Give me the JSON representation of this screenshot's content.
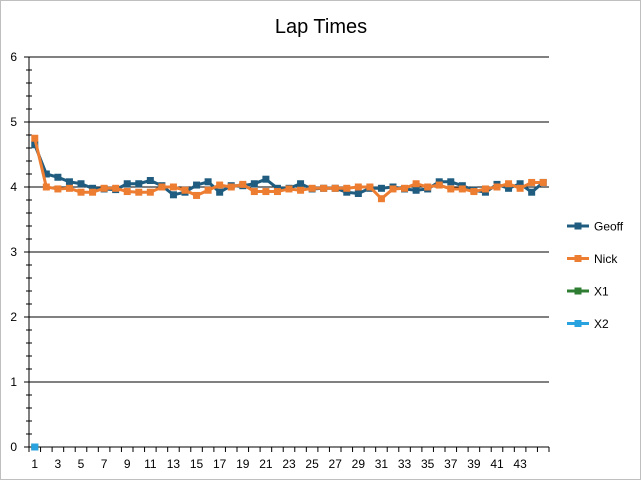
{
  "chart_data": {
    "type": "line",
    "title": "Lap Times",
    "xlabel": "",
    "ylabel": "",
    "ylim": [
      0,
      6
    ],
    "yticks": [
      0,
      1,
      2,
      3,
      4,
      5,
      6
    ],
    "x_tick_labels": [
      1,
      3,
      5,
      7,
      9,
      11,
      13,
      15,
      17,
      19,
      21,
      23,
      25,
      27,
      29,
      31,
      33,
      35,
      37,
      39,
      41,
      43
    ],
    "x_count": 45,
    "grid": "horizontal",
    "legend_position": "right",
    "series": [
      {
        "name": "Geoff",
        "color": "#1f5c7f",
        "x": [
          1,
          2,
          3,
          4,
          5,
          6,
          7,
          8,
          9,
          10,
          11,
          12,
          13,
          14,
          15,
          16,
          17,
          18,
          19,
          20,
          21,
          22,
          23,
          24,
          25,
          26,
          27,
          28,
          29,
          30,
          31,
          32,
          33,
          34,
          35,
          36,
          37,
          38,
          39,
          40,
          41,
          42,
          43,
          44,
          45
        ],
        "values": [
          4.65,
          4.2,
          4.15,
          4.08,
          4.05,
          3.98,
          3.97,
          3.96,
          4.05,
          4.05,
          4.1,
          4.02,
          3.88,
          3.92,
          4.03,
          4.08,
          3.92,
          4.02,
          4.02,
          4.05,
          4.12,
          3.98,
          3.98,
          4.05,
          3.97,
          3.98,
          3.98,
          3.92,
          3.9,
          3.98,
          3.98,
          4.0,
          3.97,
          3.95,
          3.97,
          4.08,
          4.08,
          4.02,
          3.95,
          3.92,
          4.04,
          3.98,
          4.05,
          3.92,
          4.07
        ]
      },
      {
        "name": "Nick",
        "color": "#ed7d31",
        "x": [
          1,
          2,
          3,
          4,
          5,
          6,
          7,
          8,
          9,
          10,
          11,
          12,
          13,
          14,
          15,
          16,
          17,
          18,
          19,
          20,
          21,
          22,
          23,
          24,
          25,
          26,
          27,
          28,
          29,
          30,
          31,
          32,
          33,
          34,
          35,
          36,
          37,
          38,
          39,
          40,
          41,
          42,
          43,
          44,
          45
        ],
        "values": [
          4.75,
          4.0,
          3.97,
          3.98,
          3.92,
          3.92,
          3.98,
          3.98,
          3.93,
          3.92,
          3.92,
          4.0,
          4.0,
          3.95,
          3.87,
          3.95,
          4.03,
          4.0,
          4.04,
          3.93,
          3.93,
          3.93,
          3.97,
          3.95,
          3.98,
          3.98,
          3.98,
          3.98,
          4.0,
          4.0,
          3.82,
          3.97,
          3.98,
          4.05,
          4.0,
          4.03,
          3.97,
          3.97,
          3.93,
          3.97,
          4.0,
          4.05,
          3.98,
          4.07,
          4.07
        ]
      },
      {
        "name": "X1",
        "color": "#2e7d32",
        "x": [
          1
        ],
        "values": [
          0
        ]
      },
      {
        "name": "X2",
        "color": "#29a3e0",
        "x": [
          1
        ],
        "values": [
          0
        ]
      }
    ]
  }
}
